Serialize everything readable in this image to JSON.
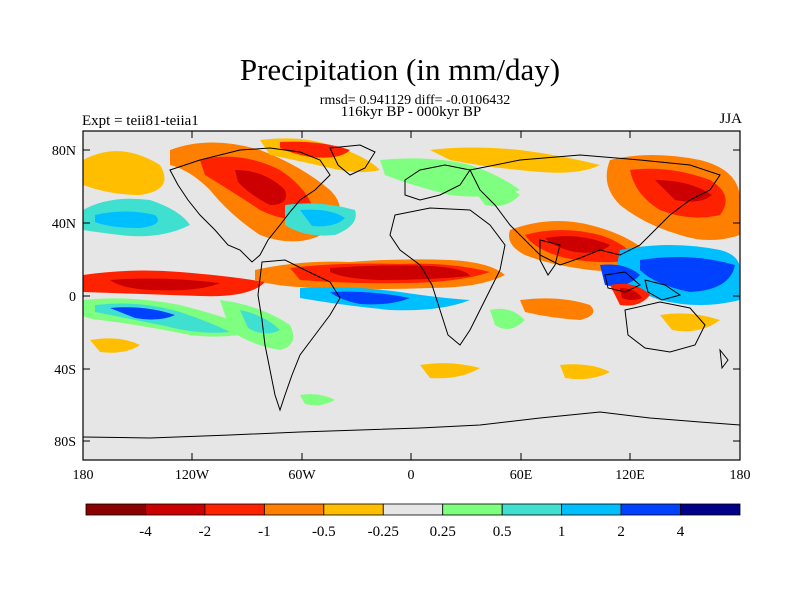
{
  "title": "Precipitation (in mm/day)",
  "stats_line": "rmsd= 0.941129 diff= -0.0106432",
  "period_line": "116kyr BP - 000kyr BP",
  "left_label": "Expt = teii81-teiia1",
  "right_label": "JJA",
  "map": {
    "lon_range": [
      -180,
      180
    ],
    "lat_range": [
      -90,
      90
    ],
    "lat_ticks": [
      "80N",
      "40N",
      "0",
      "40S",
      "80S"
    ],
    "lon_ticks": [
      "180",
      "120W",
      "60W",
      "0",
      "60E",
      "120E",
      "180"
    ],
    "background_color": "#e6e6e6"
  },
  "colorbar": {
    "labels": [
      "-4",
      "-2",
      "-1",
      "-0.5",
      "-0.25",
      "0.25",
      "0.5",
      "1",
      "2",
      "4"
    ],
    "colors": [
      "#8b0000",
      "#cc0000",
      "#ff2200",
      "#ff7f00",
      "#ffbf00",
      "#e6e6e6",
      "#7fff7f",
      "#40e0d0",
      "#00bfff",
      "#0040ff",
      "#00008b"
    ]
  }
}
